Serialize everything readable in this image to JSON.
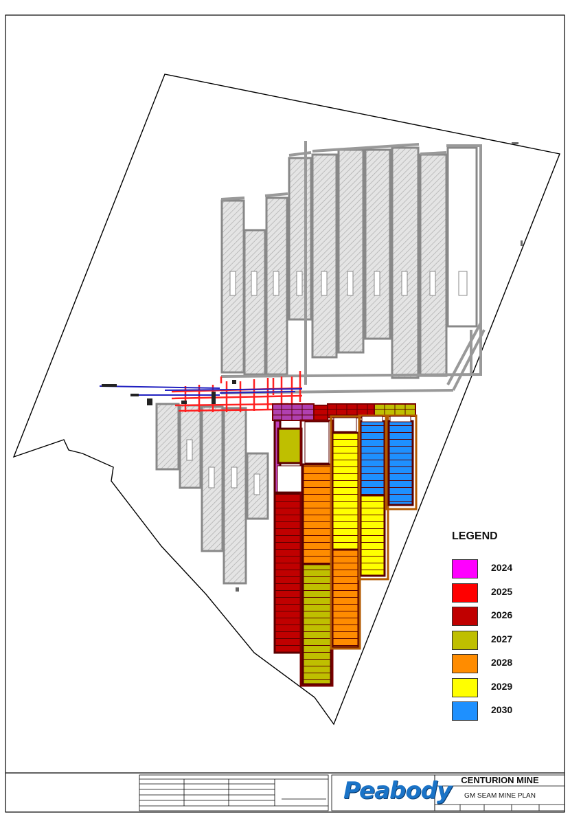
{
  "legend": {
    "title": "LEGEND",
    "items": [
      {
        "year": "2024",
        "color": "#ff00ff"
      },
      {
        "year": "2025",
        "color": "#ff0000"
      },
      {
        "year": "2026",
        "color": "#c00000"
      },
      {
        "year": "2027",
        "color": "#bfbf00"
      },
      {
        "year": "2028",
        "color": "#ff8c00"
      },
      {
        "year": "2029",
        "color": "#ffff00"
      },
      {
        "year": "2030",
        "color": "#1e90ff"
      }
    ]
  },
  "title_block": {
    "mine_name": "CENTURION MINE",
    "plan_name": "GM SEAM MINE PLAN",
    "logo_text": "Peabody",
    "brand_color": "#1a73c7"
  },
  "colors": {
    "workings_gray": "#9a9a9a",
    "roadway_red": "#ff2020",
    "roadway_blue": "#2020c0"
  }
}
